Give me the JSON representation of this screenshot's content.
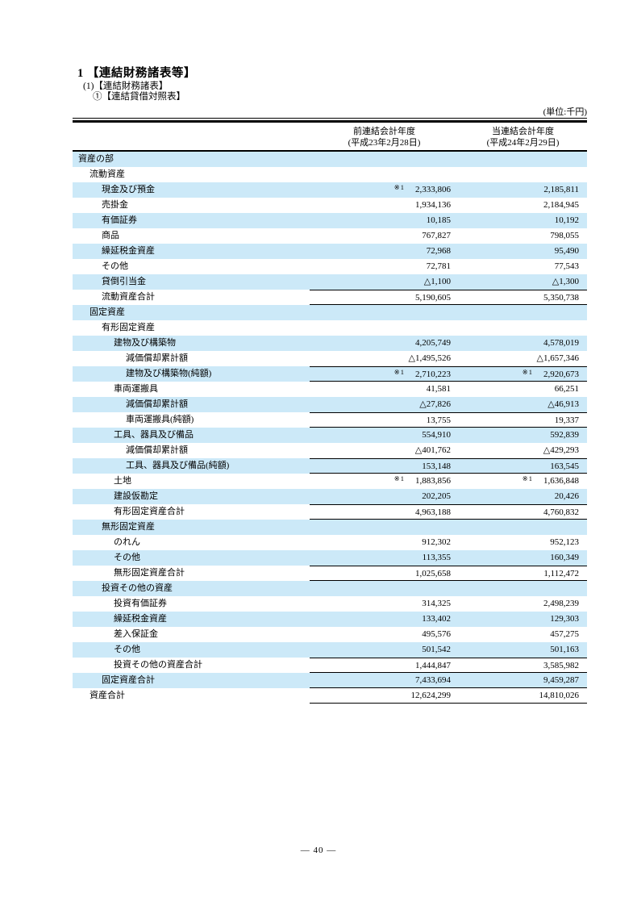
{
  "document": {
    "title1": "1 【連結財務諸表等】",
    "title2": "(1)【連結財務諸表】",
    "title3": "①【連結貸借対照表】",
    "unit_label": "(単位:千円)",
    "page_number": "― 40 ―"
  },
  "colors": {
    "row_shade": "#cce9f8"
  },
  "table": {
    "columns": [
      {
        "line1": "前連結会計年度",
        "line2": "(平成23年2月28日)"
      },
      {
        "line1": "当連結会計年度",
        "line2": "(平成24年2月29日)"
      }
    ],
    "rows": [
      {
        "label": "資産の部",
        "indent": 1,
        "mark_prev": "",
        "prev": "",
        "mark_curr": "",
        "curr": "",
        "rule_top": false,
        "rule_bottom": false
      },
      {
        "label": "流動資産",
        "indent": 2,
        "mark_prev": "",
        "prev": "",
        "mark_curr": "",
        "curr": "",
        "rule_top": false,
        "rule_bottom": false
      },
      {
        "label": "現金及び預金",
        "indent": 3,
        "mark_prev": "※1",
        "prev": "2,333,806",
        "mark_curr": "",
        "curr": "2,185,811",
        "rule_top": false,
        "rule_bottom": false
      },
      {
        "label": "売掛金",
        "indent": 3,
        "mark_prev": "",
        "prev": "1,934,136",
        "mark_curr": "",
        "curr": "2,184,945",
        "rule_top": false,
        "rule_bottom": false
      },
      {
        "label": "有価証券",
        "indent": 3,
        "mark_prev": "",
        "prev": "10,185",
        "mark_curr": "",
        "curr": "10,192",
        "rule_top": false,
        "rule_bottom": false
      },
      {
        "label": "商品",
        "indent": 3,
        "mark_prev": "",
        "prev": "767,827",
        "mark_curr": "",
        "curr": "798,055",
        "rule_top": false,
        "rule_bottom": false
      },
      {
        "label": "繰延税金資産",
        "indent": 3,
        "mark_prev": "",
        "prev": "72,968",
        "mark_curr": "",
        "curr": "95,490",
        "rule_top": false,
        "rule_bottom": false
      },
      {
        "label": "その他",
        "indent": 3,
        "mark_prev": "",
        "prev": "72,781",
        "mark_curr": "",
        "curr": "77,543",
        "rule_top": false,
        "rule_bottom": false
      },
      {
        "label": "貸倒引当金",
        "indent": 3,
        "mark_prev": "",
        "prev": "△1,100",
        "mark_curr": "",
        "curr": "△1,300",
        "rule_top": false,
        "rule_bottom": false
      },
      {
        "label": "流動資産合計",
        "indent": 3,
        "mark_prev": "",
        "prev": "5,190,605",
        "mark_curr": "",
        "curr": "5,350,738",
        "rule_top": true,
        "rule_bottom": true
      },
      {
        "label": "固定資産",
        "indent": 2,
        "mark_prev": "",
        "prev": "",
        "mark_curr": "",
        "curr": "",
        "rule_top": false,
        "rule_bottom": false
      },
      {
        "label": "有形固定資産",
        "indent": 3,
        "mark_prev": "",
        "prev": "",
        "mark_curr": "",
        "curr": "",
        "rule_top": false,
        "rule_bottom": false
      },
      {
        "label": "建物及び構築物",
        "indent": 4,
        "mark_prev": "",
        "prev": "4,205,749",
        "mark_curr": "",
        "curr": "4,578,019",
        "rule_top": false,
        "rule_bottom": false
      },
      {
        "label": "減価償却累計額",
        "indent": 5,
        "mark_prev": "",
        "prev": "△1,495,526",
        "mark_curr": "",
        "curr": "△1,657,346",
        "rule_top": false,
        "rule_bottom": false
      },
      {
        "label": "建物及び構築物(純額)",
        "indent": 5,
        "mark_prev": "※1",
        "prev": "2,710,223",
        "mark_curr": "※1",
        "curr": "2,920,673",
        "rule_top": true,
        "rule_bottom": true
      },
      {
        "label": "車両運搬具",
        "indent": 4,
        "mark_prev": "",
        "prev": "41,581",
        "mark_curr": "",
        "curr": "66,251",
        "rule_top": false,
        "rule_bottom": false
      },
      {
        "label": "減価償却累計額",
        "indent": 5,
        "mark_prev": "",
        "prev": "△27,826",
        "mark_curr": "",
        "curr": "△46,913",
        "rule_top": false,
        "rule_bottom": false
      },
      {
        "label": "車両運搬具(純額)",
        "indent": 5,
        "mark_prev": "",
        "prev": "13,755",
        "mark_curr": "",
        "curr": "19,337",
        "rule_top": true,
        "rule_bottom": true
      },
      {
        "label": "工具、器具及び備品",
        "indent": 4,
        "mark_prev": "",
        "prev": "554,910",
        "mark_curr": "",
        "curr": "592,839",
        "rule_top": false,
        "rule_bottom": false
      },
      {
        "label": "減価償却累計額",
        "indent": 5,
        "mark_prev": "",
        "prev": "△401,762",
        "mark_curr": "",
        "curr": "△429,293",
        "rule_top": false,
        "rule_bottom": false
      },
      {
        "label": "工具、器具及び備品(純額)",
        "indent": 5,
        "mark_prev": "",
        "prev": "153,148",
        "mark_curr": "",
        "curr": "163,545",
        "rule_top": true,
        "rule_bottom": true
      },
      {
        "label": "土地",
        "indent": 4,
        "mark_prev": "※1",
        "prev": "1,883,856",
        "mark_curr": "※1",
        "curr": "1,636,848",
        "rule_top": false,
        "rule_bottom": false
      },
      {
        "label": "建設仮勘定",
        "indent": 4,
        "mark_prev": "",
        "prev": "202,205",
        "mark_curr": "",
        "curr": "20,426",
        "rule_top": false,
        "rule_bottom": false
      },
      {
        "label": "有形固定資産合計",
        "indent": 4,
        "mark_prev": "",
        "prev": "4,963,188",
        "mark_curr": "",
        "curr": "4,760,832",
        "rule_top": true,
        "rule_bottom": true
      },
      {
        "label": "無形固定資産",
        "indent": 3,
        "mark_prev": "",
        "prev": "",
        "mark_curr": "",
        "curr": "",
        "rule_top": false,
        "rule_bottom": false
      },
      {
        "label": "のれん",
        "indent": 4,
        "mark_prev": "",
        "prev": "912,302",
        "mark_curr": "",
        "curr": "952,123",
        "rule_top": false,
        "rule_bottom": false
      },
      {
        "label": "その他",
        "indent": 4,
        "mark_prev": "",
        "prev": "113,355",
        "mark_curr": "",
        "curr": "160,349",
        "rule_top": false,
        "rule_bottom": false
      },
      {
        "label": "無形固定資産合計",
        "indent": 4,
        "mark_prev": "",
        "prev": "1,025,658",
        "mark_curr": "",
        "curr": "1,112,472",
        "rule_top": true,
        "rule_bottom": true
      },
      {
        "label": "投資その他の資産",
        "indent": 3,
        "mark_prev": "",
        "prev": "",
        "mark_curr": "",
        "curr": "",
        "rule_top": false,
        "rule_bottom": false
      },
      {
        "label": "投資有価証券",
        "indent": 4,
        "mark_prev": "",
        "prev": "314,325",
        "mark_curr": "",
        "curr": "2,498,239",
        "rule_top": false,
        "rule_bottom": false
      },
      {
        "label": "繰延税金資産",
        "indent": 4,
        "mark_prev": "",
        "prev": "133,402",
        "mark_curr": "",
        "curr": "129,303",
        "rule_top": false,
        "rule_bottom": false
      },
      {
        "label": "差入保証金",
        "indent": 4,
        "mark_prev": "",
        "prev": "495,576",
        "mark_curr": "",
        "curr": "457,275",
        "rule_top": false,
        "rule_bottom": false
      },
      {
        "label": "その他",
        "indent": 4,
        "mark_prev": "",
        "prev": "501,542",
        "mark_curr": "",
        "curr": "501,163",
        "rule_top": false,
        "rule_bottom": false
      },
      {
        "label": "投資その他の資産合計",
        "indent": 4,
        "mark_prev": "",
        "prev": "1,444,847",
        "mark_curr": "",
        "curr": "3,585,982",
        "rule_top": true,
        "rule_bottom": true
      },
      {
        "label": "固定資産合計",
        "indent": 3,
        "mark_prev": "",
        "prev": "7,433,694",
        "mark_curr": "",
        "curr": "9,459,287",
        "rule_top": false,
        "rule_bottom": true
      },
      {
        "label": "資産合計",
        "indent": 2,
        "mark_prev": "",
        "prev": "12,624,299",
        "mark_curr": "",
        "curr": "14,810,026",
        "rule_top": false,
        "rule_bottom": true
      }
    ]
  }
}
